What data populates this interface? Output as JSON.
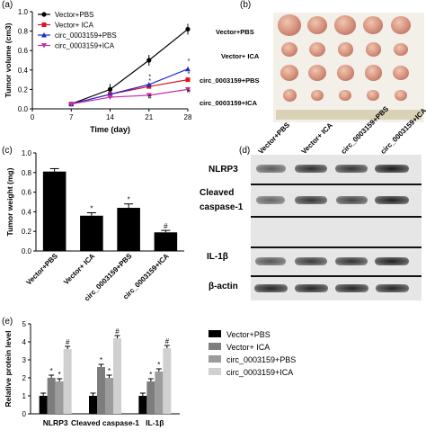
{
  "panels": {
    "a": "(a)",
    "b": "(b)",
    "c": "(c)",
    "d": "(d)",
    "e": "(e)"
  },
  "groups": [
    "Vector+PBS",
    "Vector+ ICA",
    "circ_0003159+PBS",
    "circ_0003159+ICA"
  ],
  "colors": {
    "vector_pbs": "#000000",
    "vector_ica": "#e0141e",
    "circ_pbs": "#1f2ad0",
    "circ_ica": "#c42fa8",
    "bar_c": "#000000",
    "e1": "#000000",
    "e2": "#7d7d7d",
    "e3": "#9c9c9c",
    "e4": "#d0d0d0"
  },
  "chart_data": [
    {
      "type": "line",
      "xlabel": "Time (day)",
      "ylabel": "Tumor volume (cm3)",
      "x": [
        7,
        14,
        21,
        28
      ],
      "xlim": [
        0,
        28
      ],
      "ylim": [
        0,
        1.0
      ],
      "xticks": [
        "0",
        "7",
        "14",
        "21",
        "28"
      ],
      "yticks": [
        "0.0",
        "0.2",
        "0.4",
        "0.6",
        "0.8",
        "1.0"
      ],
      "series": [
        {
          "name": "Vector+PBS",
          "values": [
            0.05,
            0.2,
            0.5,
            0.82
          ],
          "marker": "circle"
        },
        {
          "name": "Vector+ ICA",
          "values": [
            0.05,
            0.15,
            0.23,
            0.3
          ],
          "marker": "square"
        },
        {
          "name": "circ_0003159+PBS",
          "values": [
            0.05,
            0.15,
            0.25,
            0.41
          ],
          "marker": "triangle"
        },
        {
          "name": "circ_0003159+ICA",
          "values": [
            0.05,
            0.12,
            0.14,
            0.2
          ],
          "marker": "triangle-down"
        }
      ],
      "annotations": [
        "*",
        "*",
        "*",
        "*",
        "#",
        "#"
      ],
      "legend": "top-left"
    },
    {
      "type": "bar",
      "ylabel": "Tumor weight (mg)",
      "categories": [
        "Vector+PBS",
        "Vector+ ICA",
        "circ_0003159+PBS",
        "circ_0003159+ICA"
      ],
      "values": [
        0.81,
        0.36,
        0.44,
        0.19
      ],
      "errors": [
        0.03,
        0.03,
        0.04,
        0.02
      ],
      "annotations": [
        "",
        "*",
        "*",
        "#"
      ],
      "ylim": [
        0,
        1.0
      ],
      "yticks": [
        "0.0",
        "0.2",
        "0.4",
        "0.6",
        "0.8",
        "1.0"
      ]
    },
    {
      "type": "bar",
      "ylabel": "Relative protein level",
      "categories": [
        "NLRP3",
        "Cleaved caspase-1",
        "IL-1β"
      ],
      "series": [
        {
          "name": "Vector+PBS",
          "values": [
            1.0,
            1.0,
            1.0
          ]
        },
        {
          "name": "Vector+ ICA",
          "values": [
            2.0,
            2.6,
            1.8
          ]
        },
        {
          "name": "circ_0003159+PBS",
          "values": [
            1.8,
            2.0,
            2.35
          ]
        },
        {
          "name": "circ_0003159+ICA",
          "values": [
            3.6,
            4.2,
            3.65
          ]
        }
      ],
      "annotations": [
        "",
        "*",
        "*",
        "#"
      ],
      "ylim": [
        0,
        5
      ],
      "yticks": [
        "0",
        "1",
        "2",
        "3",
        "4",
        "5"
      ],
      "legend": "right"
    }
  ],
  "blot": {
    "labels": [
      "NLRP3",
      "Cleaved",
      "caspase-1",
      "IL-1β",
      "β-actin"
    ],
    "intensity": [
      [
        0.5,
        0.85,
        0.8,
        1.0
      ],
      [
        0.45,
        0.8,
        0.7,
        0.95
      ],
      [
        0.55,
        0.75,
        0.8,
        0.95
      ],
      [
        0.9,
        0.9,
        0.9,
        0.9
      ]
    ]
  }
}
